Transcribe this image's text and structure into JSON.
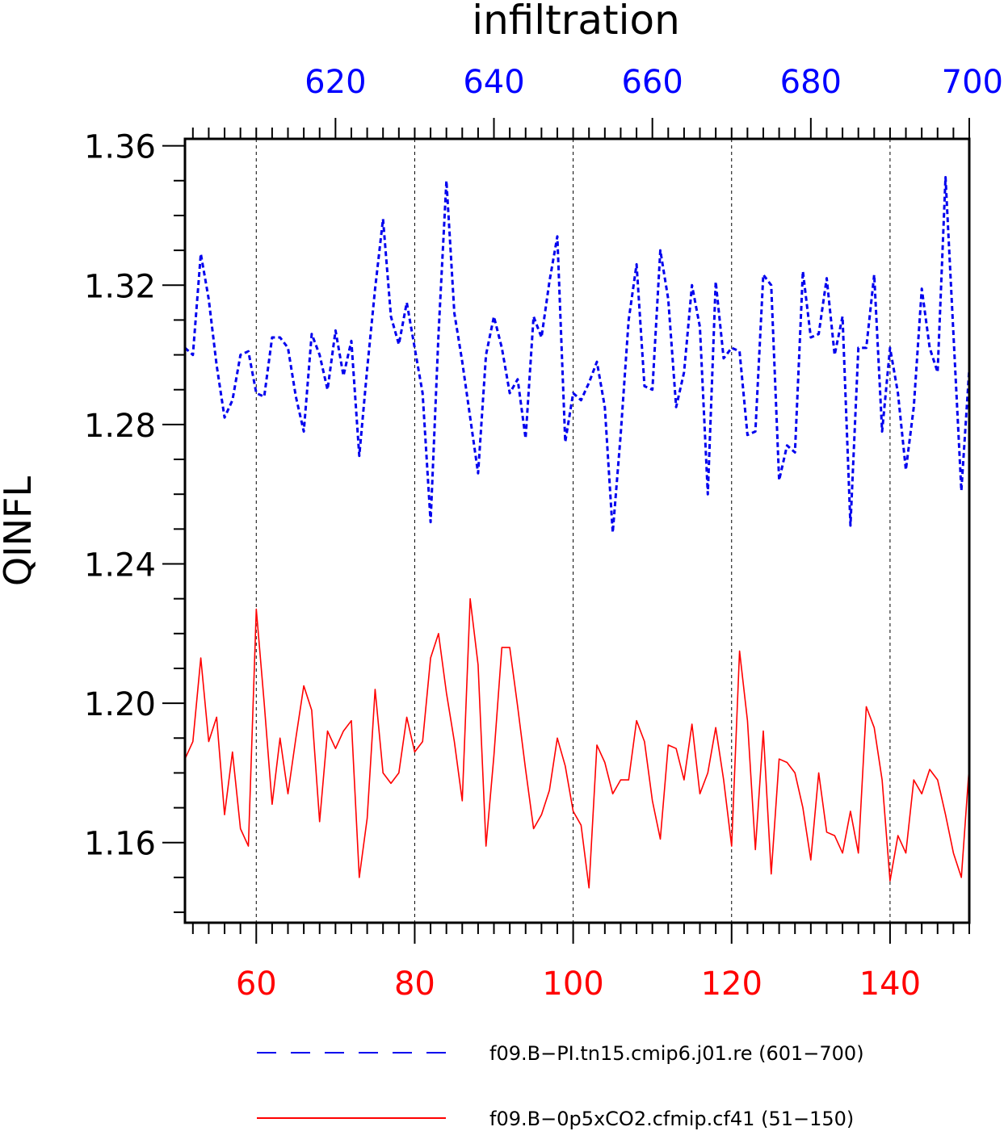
{
  "chart_data": {
    "type": "line",
    "title": "infiltration",
    "ylabel": "QINFL",
    "ylim": [
      1.137,
      1.362
    ],
    "yticks": [
      "1.36",
      "1.32",
      "1.28",
      "1.24",
      "1.20",
      "1.16"
    ],
    "grid": "vertical dashed lines at bottom-axis major ticks",
    "bottom_axis": {
      "range": [
        51,
        150
      ],
      "ticks": [
        "60",
        "80",
        "100",
        "120",
        "140"
      ],
      "color": "#ff0000"
    },
    "top_axis": {
      "range": [
        601,
        700
      ],
      "ticks": [
        "620",
        "640",
        "660",
        "680",
        "700"
      ],
      "color": "#0000ff"
    },
    "legend_placement": "bottom",
    "series": [
      {
        "name": "f09.B−PI.tn15.cmip6.j01.re (601−700)",
        "color": "#0000ee",
        "style": "dashed",
        "x_start": 601,
        "values": [
          1.302,
          1.3,
          1.329,
          1.316,
          1.297,
          1.282,
          1.287,
          1.3,
          1.301,
          1.289,
          1.288,
          1.305,
          1.305,
          1.302,
          1.288,
          1.278,
          1.306,
          1.3,
          1.29,
          1.307,
          1.294,
          1.304,
          1.271,
          1.296,
          1.319,
          1.339,
          1.311,
          1.303,
          1.315,
          1.302,
          1.289,
          1.252,
          1.306,
          1.35,
          1.312,
          1.298,
          1.282,
          1.266,
          1.3,
          1.311,
          1.302,
          1.289,
          1.293,
          1.276,
          1.311,
          1.305,
          1.321,
          1.334,
          1.275,
          1.289,
          1.287,
          1.292,
          1.298,
          1.285,
          1.249,
          1.277,
          1.31,
          1.326,
          1.291,
          1.29,
          1.33,
          1.316,
          1.285,
          1.295,
          1.32,
          1.308,
          1.26,
          1.321,
          1.299,
          1.302,
          1.301,
          1.277,
          1.278,
          1.323,
          1.32,
          1.264,
          1.274,
          1.272,
          1.324,
          1.305,
          1.306,
          1.322,
          1.3,
          1.311,
          1.251,
          1.302,
          1.302,
          1.323,
          1.278,
          1.302,
          1.289,
          1.267,
          1.285,
          1.319,
          1.302,
          1.295,
          1.351,
          1.306,
          1.261,
          1.296
        ]
      },
      {
        "name": "f09.B−0p5xCO2.cfmip.cf41 (51−150)",
        "color": "#ff0000",
        "style": "solid",
        "x_start": 51,
        "values": [
          1.184,
          1.189,
          1.213,
          1.189,
          1.196,
          1.168,
          1.186,
          1.164,
          1.159,
          1.227,
          1.2,
          1.171,
          1.19,
          1.174,
          1.19,
          1.205,
          1.198,
          1.166,
          1.192,
          1.187,
          1.192,
          1.195,
          1.15,
          1.167,
          1.204,
          1.18,
          1.177,
          1.18,
          1.196,
          1.186,
          1.189,
          1.213,
          1.22,
          1.203,
          1.189,
          1.172,
          1.23,
          1.211,
          1.159,
          1.185,
          1.216,
          1.216,
          1.199,
          1.181,
          1.164,
          1.168,
          1.175,
          1.19,
          1.182,
          1.169,
          1.165,
          1.147,
          1.188,
          1.183,
          1.174,
          1.178,
          1.178,
          1.195,
          1.189,
          1.172,
          1.161,
          1.188,
          1.187,
          1.178,
          1.194,
          1.174,
          1.18,
          1.193,
          1.178,
          1.159,
          1.215,
          1.195,
          1.158,
          1.192,
          1.151,
          1.184,
          1.183,
          1.18,
          1.17,
          1.155,
          1.18,
          1.163,
          1.162,
          1.157,
          1.169,
          1.157,
          1.199,
          1.193,
          1.178,
          1.149,
          1.162,
          1.157,
          1.178,
          1.174,
          1.181,
          1.178,
          1.168,
          1.157,
          1.15,
          1.182
        ]
      }
    ]
  }
}
